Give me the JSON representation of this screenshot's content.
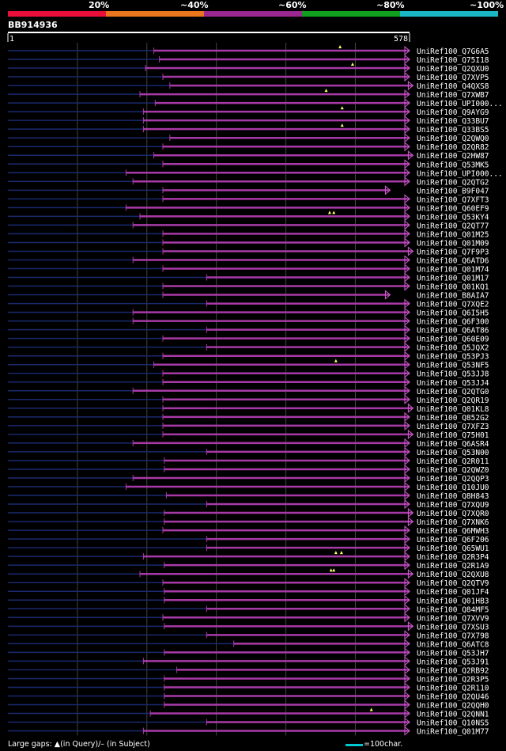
{
  "header": {
    "query_id": "BB914936",
    "pct_labels": [
      "20%",
      "~40%",
      "~60%",
      "~80%",
      "~100%"
    ],
    "band_colors": [
      "#ea0f3a",
      "#e9761e",
      "#9b2891",
      "#129e1f",
      "#19b8c4"
    ]
  },
  "footer": {
    "legend": "Large gaps: ▲(in Query)/– (in Subject)",
    "scale": "=100char."
  },
  "chart_data": {
    "type": "alignment",
    "title": "BB914936",
    "query_length": 578,
    "ruler": {
      "start": "1",
      "end": "578"
    },
    "colors": {
      "hit": "#a83aa8",
      "unaligned": "#1a2a6e",
      "marker": "#ffff66",
      "grid": "#444444"
    },
    "hits": [
      {
        "name": "UniRef100_Q7G6A5",
        "start": 210,
        "end": 578,
        "markers": [
          478
        ]
      },
      {
        "name": "UniRef100_Q75I18",
        "start": 218,
        "end": 578,
        "markers": []
      },
      {
        "name": "UniRef100_Q2QXU0",
        "start": 198,
        "end": 578,
        "markers": [
          496
        ]
      },
      {
        "name": "UniRef100_Q7XVP5",
        "start": 223,
        "end": 578,
        "markers": []
      },
      {
        "name": "UniRef100_Q4QXS8",
        "start": 233,
        "end": 583,
        "markers": []
      },
      {
        "name": "UniRef100_Q7XWB7",
        "start": 190,
        "end": 578,
        "markers": [
          458
        ]
      },
      {
        "name": "UniRef100_UPI000...",
        "start": 212,
        "end": 578,
        "markers": []
      },
      {
        "name": "UniRef100_Q9AYG9",
        "start": 195,
        "end": 578,
        "markers": [
          481
        ]
      },
      {
        "name": "UniRef100_Q33BU7",
        "start": 195,
        "end": 578,
        "markers": []
      },
      {
        "name": "UniRef100_Q33BS5",
        "start": 195,
        "end": 578,
        "markers": [
          481
        ]
      },
      {
        "name": "UniRef100_Q2QWQ0",
        "start": 233,
        "end": 578,
        "markers": []
      },
      {
        "name": "UniRef100_Q2QR82",
        "start": 223,
        "end": 578,
        "markers": []
      },
      {
        "name": "UniRef100_Q2HW87",
        "start": 210,
        "end": 583,
        "markers": []
      },
      {
        "name": "UniRef100_Q53MK5",
        "start": 223,
        "end": 578,
        "markers": []
      },
      {
        "name": "UniRef100_UPI000...",
        "start": 170,
        "end": 578,
        "markers": []
      },
      {
        "name": "UniRef100_Q2QTG2",
        "start": 180,
        "end": 578,
        "markers": []
      },
      {
        "name": "UniRef100_B9F047",
        "start": 223,
        "end": 550,
        "markers": []
      },
      {
        "name": "UniRef100_Q7XFT3",
        "start": 223,
        "end": 578,
        "markers": []
      },
      {
        "name": "UniRef100_Q60EF9",
        "start": 170,
        "end": 578,
        "markers": []
      },
      {
        "name": "UniRef100_Q53KY4",
        "start": 190,
        "end": 578,
        "markers": [
          463,
          469
        ]
      },
      {
        "name": "UniRef100_Q2QT77",
        "start": 180,
        "end": 578,
        "markers": []
      },
      {
        "name": "UniRef100_Q01M25",
        "start": 223,
        "end": 578,
        "markers": []
      },
      {
        "name": "UniRef100_Q01M09",
        "start": 223,
        "end": 578,
        "markers": []
      },
      {
        "name": "UniRef100_Q7F9P3",
        "start": 223,
        "end": 583,
        "markers": []
      },
      {
        "name": "UniRef100_Q6ATD6",
        "start": 180,
        "end": 578,
        "markers": []
      },
      {
        "name": "UniRef100_Q01M74",
        "start": 223,
        "end": 578,
        "markers": []
      },
      {
        "name": "UniRef100_Q01M17",
        "start": 286,
        "end": 578,
        "markers": []
      },
      {
        "name": "UniRef100_Q01KQ1",
        "start": 223,
        "end": 578,
        "markers": []
      },
      {
        "name": "UniRef100_B8AIA7",
        "start": 223,
        "end": 550,
        "markers": []
      },
      {
        "name": "UniRef100_Q7XQE2",
        "start": 286,
        "end": 578,
        "markers": []
      },
      {
        "name": "UniRef100_Q6I5H5",
        "start": 180,
        "end": 578,
        "markers": []
      },
      {
        "name": "UniRef100_Q6F300",
        "start": 180,
        "end": 578,
        "markers": []
      },
      {
        "name": "UniRef100_Q6AT86",
        "start": 286,
        "end": 578,
        "markers": []
      },
      {
        "name": "UniRef100_Q60E09",
        "start": 223,
        "end": 578,
        "markers": []
      },
      {
        "name": "UniRef100_Q5JQX2",
        "start": 286,
        "end": 578,
        "markers": []
      },
      {
        "name": "UniRef100_Q53PJ3",
        "start": 223,
        "end": 578,
        "markers": []
      },
      {
        "name": "UniRef100_Q53NF5",
        "start": 210,
        "end": 578,
        "markers": [
          472
        ]
      },
      {
        "name": "UniRef100_Q53JJ8",
        "start": 223,
        "end": 578,
        "markers": []
      },
      {
        "name": "UniRef100_Q53JJ4",
        "start": 223,
        "end": 578,
        "markers": []
      },
      {
        "name": "UniRef100_Q2QTG0",
        "start": 180,
        "end": 578,
        "markers": []
      },
      {
        "name": "UniRef100_Q2QR19",
        "start": 223,
        "end": 578,
        "markers": []
      },
      {
        "name": "UniRef100_Q01KL8",
        "start": 223,
        "end": 583,
        "markers": []
      },
      {
        "name": "UniRef100_Q852G2",
        "start": 223,
        "end": 578,
        "markers": []
      },
      {
        "name": "UniRef100_Q7XFZ3",
        "start": 223,
        "end": 578,
        "markers": []
      },
      {
        "name": "UniRef100_Q75H01",
        "start": 223,
        "end": 583,
        "markers": []
      },
      {
        "name": "UniRef100_Q6ASR4",
        "start": 180,
        "end": 578,
        "markers": []
      },
      {
        "name": "UniRef100_Q53N00",
        "start": 286,
        "end": 578,
        "markers": []
      },
      {
        "name": "UniRef100_Q2R011",
        "start": 225,
        "end": 578,
        "markers": []
      },
      {
        "name": "UniRef100_Q2QWZ0",
        "start": 225,
        "end": 578,
        "markers": []
      },
      {
        "name": "UniRef100_Q2QQP3",
        "start": 180,
        "end": 578,
        "markers": []
      },
      {
        "name": "UniRef100_Q10JU0",
        "start": 170,
        "end": 578,
        "markers": []
      },
      {
        "name": "UniRef100_Q8H843",
        "start": 228,
        "end": 578,
        "markers": []
      },
      {
        "name": "UniRef100_Q7XQU9",
        "start": 286,
        "end": 578,
        "markers": []
      },
      {
        "name": "UniRef100_Q7XQR0",
        "start": 225,
        "end": 583,
        "markers": []
      },
      {
        "name": "UniRef100_Q7XNK6",
        "start": 225,
        "end": 583,
        "markers": []
      },
      {
        "name": "UniRef100_Q6MWH3",
        "start": 223,
        "end": 578,
        "markers": []
      },
      {
        "name": "UniRef100_Q6F206",
        "start": 286,
        "end": 578,
        "markers": []
      },
      {
        "name": "UniRef100_Q65WU1",
        "start": 286,
        "end": 578,
        "markers": []
      },
      {
        "name": "UniRef100_Q2R3P4",
        "start": 195,
        "end": 578,
        "markers": [
          472,
          480
        ]
      },
      {
        "name": "UniRef100_Q2R1A9",
        "start": 225,
        "end": 578,
        "markers": []
      },
      {
        "name": "UniRef100_Q2QXU8",
        "start": 190,
        "end": 583,
        "markers": [
          465,
          469
        ]
      },
      {
        "name": "UniRef100_Q2QTV9",
        "start": 223,
        "end": 578,
        "markers": []
      },
      {
        "name": "UniRef100_Q01JF4",
        "start": 225,
        "end": 578,
        "markers": []
      },
      {
        "name": "UniRef100_Q01HB3",
        "start": 225,
        "end": 578,
        "markers": []
      },
      {
        "name": "UniRef100_Q84MF5",
        "start": 286,
        "end": 578,
        "markers": []
      },
      {
        "name": "UniRef100_Q7XVV9",
        "start": 223,
        "end": 578,
        "markers": []
      },
      {
        "name": "UniRef100_Q7XSU3",
        "start": 225,
        "end": 583,
        "markers": []
      },
      {
        "name": "UniRef100_Q7X798",
        "start": 286,
        "end": 578,
        "markers": []
      },
      {
        "name": "UniRef100_Q6ATC8",
        "start": 325,
        "end": 578,
        "markers": []
      },
      {
        "name": "UniRef100_Q53JH7",
        "start": 225,
        "end": 578,
        "markers": []
      },
      {
        "name": "UniRef100_Q53J91",
        "start": 195,
        "end": 578,
        "markers": []
      },
      {
        "name": "UniRef100_Q2RB92",
        "start": 243,
        "end": 578,
        "markers": []
      },
      {
        "name": "UniRef100_Q2R3P5",
        "start": 225,
        "end": 578,
        "markers": []
      },
      {
        "name": "UniRef100_Q2R110",
        "start": 225,
        "end": 578,
        "markers": []
      },
      {
        "name": "UniRef100_Q2QU46",
        "start": 225,
        "end": 578,
        "markers": []
      },
      {
        "name": "UniRef100_Q2QQH0",
        "start": 225,
        "end": 578,
        "markers": []
      },
      {
        "name": "UniRef100_Q2QNN1",
        "start": 205,
        "end": 578,
        "markers": [
          523
        ]
      },
      {
        "name": "UniRef100_Q10NS5",
        "start": 286,
        "end": 578,
        "markers": []
      },
      {
        "name": "UniRef100_Q01M77",
        "start": 195,
        "end": 578,
        "markers": []
      }
    ]
  }
}
